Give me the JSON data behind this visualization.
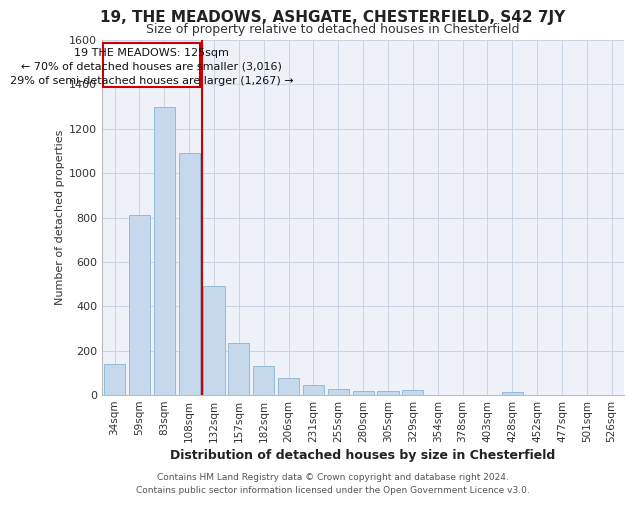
{
  "title": "19, THE MEADOWS, ASHGATE, CHESTERFIELD, S42 7JY",
  "subtitle": "Size of property relative to detached houses in Chesterfield",
  "xlabel": "Distribution of detached houses by size in Chesterfield",
  "ylabel": "Number of detached properties",
  "footer_line1": "Contains HM Land Registry data © Crown copyright and database right 2024.",
  "footer_line2": "Contains public sector information licensed under the Open Government Licence v3.0.",
  "annotation_line1": "19 THE MEADOWS: 125sqm",
  "annotation_line2": "← 70% of detached houses are smaller (3,016)",
  "annotation_line3": "29% of semi-detached houses are larger (1,267) →",
  "categories": [
    "34sqm",
    "59sqm",
    "83sqm",
    "108sqm",
    "132sqm",
    "157sqm",
    "182sqm",
    "206sqm",
    "231sqm",
    "255sqm",
    "280sqm",
    "305sqm",
    "329sqm",
    "354sqm",
    "378sqm",
    "403sqm",
    "428sqm",
    "452sqm",
    "477sqm",
    "501sqm",
    "526sqm"
  ],
  "values": [
    140,
    810,
    1300,
    1090,
    490,
    235,
    130,
    75,
    45,
    28,
    20,
    18,
    22,
    2,
    2,
    2,
    15,
    0,
    0,
    0,
    0
  ],
  "bar_color": "#c5d8ec",
  "bar_edge_color": "#7aaac8",
  "vline_color": "#cc0000",
  "vline_bin_index": 4,
  "box_edge_color": "#cc0000",
  "grid_color": "#c8d4e4",
  "background_color": "#eef2f8",
  "ylim": [
    0,
    1600
  ],
  "yticks": [
    0,
    200,
    400,
    600,
    800,
    1000,
    1200,
    1400,
    1600
  ],
  "title_fontsize": 11,
  "subtitle_fontsize": 9,
  "xlabel_fontsize": 9,
  "ylabel_fontsize": 8,
  "tick_fontsize": 8,
  "xtick_fontsize": 7.5,
  "footer_fontsize": 6.5,
  "annot_fontsize": 8
}
